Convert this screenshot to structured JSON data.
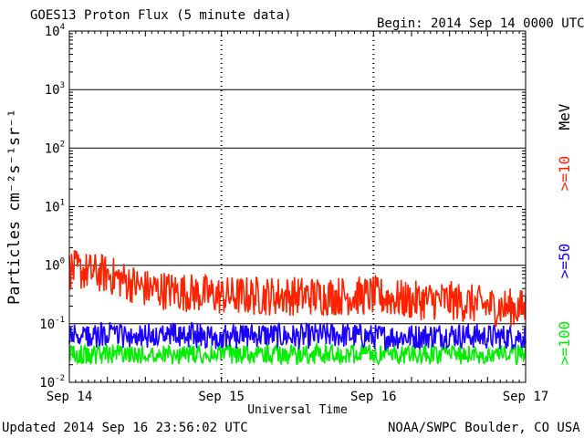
{
  "title": "GOES13 Proton Flux (5 minute data)",
  "begin": "Begin: 2014 Sep 14 0000 UTC",
  "updated": "Updated 2014 Sep 16 23:56:02 UTC",
  "credit": "NOAA/SWPC Boulder, CO USA",
  "energy_unit": "MeV",
  "colors": {
    "ge10": "#ff2200",
    "ge50": "#1a00ff",
    "ge100": "#00ee00"
  },
  "chart_data": {
    "type": "line",
    "title": "GOES13 Proton Flux (5 minute data)",
    "xlabel": "Universal Time",
    "ylabel": "Particles cm⁻²s⁻¹sr⁻¹",
    "y_scale": "log",
    "ylim": [
      0.01,
      10000
    ],
    "y_ticks": [
      "10⁻²",
      "10⁻¹",
      "10⁰",
      "10¹",
      "10²",
      "10³",
      "10⁴"
    ],
    "x_tick_labels": [
      "Sep 14",
      "Sep 15",
      "Sep 16",
      "Sep 17"
    ],
    "x": [
      "Sep 14 00:00",
      "Sep 14 06:00",
      "Sep 14 12:00",
      "Sep 14 18:00",
      "Sep 15 00:00",
      "Sep 15 06:00",
      "Sep 15 12:00",
      "Sep 15 18:00",
      "Sep 16 00:00",
      "Sep 16 06:00",
      "Sep 16 12:00",
      "Sep 16 18:00",
      "Sep 17 00:00"
    ],
    "series": [
      {
        "name": ">=10",
        "values": [
          0.85,
          0.7,
          0.4,
          0.35,
          0.3,
          0.3,
          0.3,
          0.3,
          0.3,
          0.25,
          0.25,
          0.2,
          0.18
        ]
      },
      {
        "name": ">=50",
        "values": [
          0.06,
          0.065,
          0.06,
          0.065,
          0.06,
          0.065,
          0.06,
          0.065,
          0.06,
          0.06,
          0.065,
          0.06,
          0.06
        ]
      },
      {
        "name": ">=100",
        "values": [
          0.03,
          0.03,
          0.03,
          0.03,
          0.03,
          0.03,
          0.03,
          0.03,
          0.03,
          0.03,
          0.03,
          0.03,
          0.03
        ]
      }
    ]
  }
}
